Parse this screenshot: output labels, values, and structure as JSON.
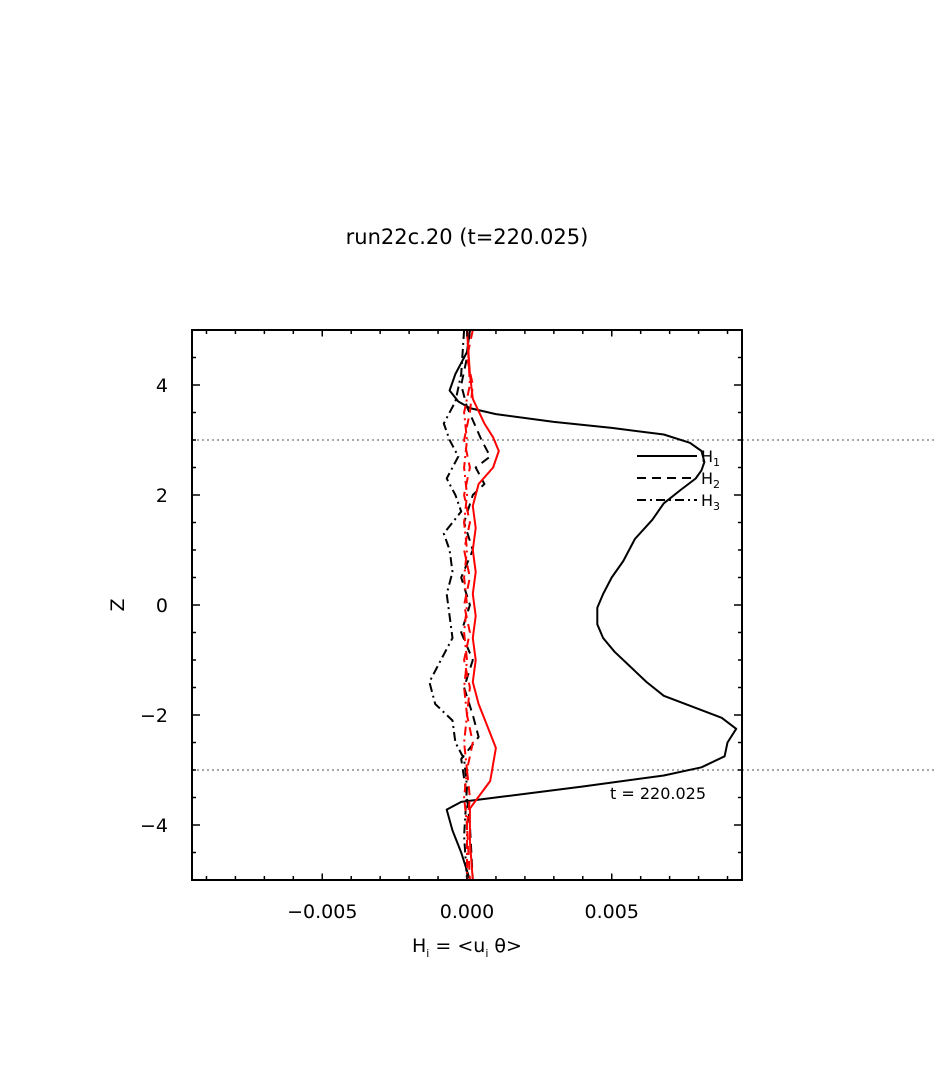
{
  "chart_data": {
    "type": "line",
    "title": "run22c.20 (t=220.025)",
    "xlabel": {
      "main": "H",
      "main_sub": "i",
      "mid": " = <u",
      "mid_sub": "i",
      "end": " θ>"
    },
    "ylabel": "Z",
    "xlim": [
      -0.0095,
      0.0095
    ],
    "ylim": [
      -5,
      5
    ],
    "x_ticks": [
      -0.005,
      0.0,
      0.005
    ],
    "x_tick_labels": [
      "−0.005",
      "0.000",
      "0.005"
    ],
    "y_ticks": [
      -4,
      -2,
      0,
      2,
      4
    ],
    "y_tick_labels": [
      "−4",
      "−2",
      "0",
      "2",
      "4"
    ],
    "reference_lines_z": [
      3,
      -3
    ],
    "annotation": "t = 220.025",
    "legend": [
      {
        "label": "H",
        "sub": "1",
        "style": "solid"
      },
      {
        "label": "H",
        "sub": "2",
        "style": "dashed"
      },
      {
        "label": "H",
        "sub": "3",
        "style": "dashdot"
      }
    ],
    "legend_position": "upper-right",
    "grid": false,
    "series": [
      {
        "name": "H1",
        "color": "#000000",
        "style": "solid",
        "points": [
          [
            0.0001,
            5.0
          ],
          [
            0.0,
            4.6
          ],
          [
            -0.0004,
            4.2
          ],
          [
            -0.0006,
            3.9
          ],
          [
            -0.0003,
            3.7
          ],
          [
            0.0001,
            3.58
          ],
          [
            0.001,
            3.47
          ],
          [
            0.003,
            3.33
          ],
          [
            0.005,
            3.22
          ],
          [
            0.0068,
            3.1
          ],
          [
            0.0077,
            2.95
          ],
          [
            0.0081,
            2.8
          ],
          [
            0.0082,
            2.6
          ],
          [
            0.0081,
            2.45
          ],
          [
            0.0079,
            2.3
          ],
          [
            0.0074,
            2.1
          ],
          [
            0.0068,
            1.85
          ],
          [
            0.0064,
            1.55
          ],
          [
            0.0058,
            1.2
          ],
          [
            0.0054,
            0.8
          ],
          [
            0.005,
            0.5
          ],
          [
            0.0047,
            0.2
          ],
          [
            0.0045,
            -0.05
          ],
          [
            0.0045,
            -0.35
          ],
          [
            0.0047,
            -0.6
          ],
          [
            0.0051,
            -0.85
          ],
          [
            0.0056,
            -1.1
          ],
          [
            0.0062,
            -1.4
          ],
          [
            0.0068,
            -1.65
          ],
          [
            0.0078,
            -1.85
          ],
          [
            0.0088,
            -2.05
          ],
          [
            0.0093,
            -2.25
          ],
          [
            0.009,
            -2.5
          ],
          [
            0.0089,
            -2.75
          ],
          [
            0.0081,
            -2.95
          ],
          [
            0.0068,
            -3.1
          ],
          [
            0.004,
            -3.3
          ],
          [
            0.0013,
            -3.48
          ],
          [
            -0.0002,
            -3.58
          ],
          [
            -0.0007,
            -3.72
          ],
          [
            -0.0005,
            -4.1
          ],
          [
            -0.0002,
            -4.5
          ],
          [
            0.0001,
            -5.0
          ]
        ]
      },
      {
        "name": "H2",
        "color": "#000000",
        "style": "dashed",
        "points": [
          [
            0.0001,
            5.0
          ],
          [
            0.0,
            4.5
          ],
          [
            -0.0002,
            4.0
          ],
          [
            0.0,
            3.6
          ],
          [
            0.0005,
            3.0
          ],
          [
            0.0008,
            2.7
          ],
          [
            0.0003,
            2.5
          ],
          [
            0.0006,
            2.2
          ],
          [
            0.0002,
            2.0
          ],
          [
            -0.0001,
            1.5
          ],
          [
            0.0002,
            1.0
          ],
          [
            -0.0002,
            0.5
          ],
          [
            0.0001,
            0.0
          ],
          [
            -0.0002,
            -0.5
          ],
          [
            0.0002,
            -1.0
          ],
          [
            -0.0001,
            -1.5
          ],
          [
            0.0002,
            -2.0
          ],
          [
            0.0004,
            -2.4
          ],
          [
            -0.0002,
            -2.8
          ],
          [
            0.0,
            -3.5
          ],
          [
            0.0001,
            -4.0
          ],
          [
            0.0002,
            -5.0
          ]
        ]
      },
      {
        "name": "H3",
        "color": "#000000",
        "style": "dashdot",
        "points": [
          [
            -0.0001,
            5.0
          ],
          [
            -0.0002,
            4.2
          ],
          [
            -0.0004,
            3.7
          ],
          [
            -0.0008,
            3.3
          ],
          [
            -0.0006,
            3.0
          ],
          [
            -0.0003,
            2.7
          ],
          [
            -0.0007,
            2.3
          ],
          [
            -0.0004,
            2.0
          ],
          [
            -0.0002,
            1.7
          ],
          [
            -0.0008,
            1.3
          ],
          [
            -0.0006,
            1.0
          ],
          [
            -0.0005,
            0.6
          ],
          [
            -0.0007,
            0.2
          ],
          [
            -0.0006,
            -0.2
          ],
          [
            -0.0005,
            -0.6
          ],
          [
            -0.0009,
            -1.0
          ],
          [
            -0.0013,
            -1.4
          ],
          [
            -0.0011,
            -1.8
          ],
          [
            -0.0005,
            -2.1
          ],
          [
            -0.0004,
            -2.5
          ],
          [
            -0.0001,
            -2.8
          ],
          [
            0.0,
            -3.3
          ],
          [
            -0.0001,
            -4.2
          ],
          [
            0.0,
            -5.0
          ]
        ]
      },
      {
        "name": "",
        "color": "#ff0000",
        "style": "solid",
        "points": [
          [
            0.0,
            5.0
          ],
          [
            0.0001,
            4.2
          ],
          [
            0.0002,
            3.75
          ],
          [
            0.0006,
            3.3
          ],
          [
            0.0009,
            3.05
          ],
          [
            0.0011,
            2.8
          ],
          [
            0.0009,
            2.5
          ],
          [
            0.0004,
            2.2
          ],
          [
            0.0002,
            1.8
          ],
          [
            0.0003,
            1.4
          ],
          [
            0.0002,
            1.0
          ],
          [
            0.0003,
            0.6
          ],
          [
            0.0002,
            0.2
          ],
          [
            0.0003,
            -0.2
          ],
          [
            0.0002,
            -0.6
          ],
          [
            0.0003,
            -1.0
          ],
          [
            0.0002,
            -1.4
          ],
          [
            0.0004,
            -1.8
          ],
          [
            0.0007,
            -2.2
          ],
          [
            0.001,
            -2.6
          ],
          [
            0.0008,
            -3.2
          ],
          [
            0.0001,
            -3.7
          ],
          [
            0.0001,
            -4.3
          ],
          [
            0.0002,
            -5.0
          ]
        ]
      },
      {
        "name": "",
        "color": "#ff0000",
        "style": "dashed",
        "points": [
          [
            0.0002,
            5.0
          ],
          [
            0.0,
            4.5
          ],
          [
            0.0002,
            4.0
          ],
          [
            0.0001,
            3.5
          ],
          [
            -0.0001,
            3.0
          ],
          [
            0.0001,
            2.5
          ],
          [
            -0.0001,
            2.0
          ],
          [
            0.0001,
            1.5
          ],
          [
            -0.0001,
            1.0
          ],
          [
            0.0001,
            0.5
          ],
          [
            -0.0001,
            0.0
          ],
          [
            0.0001,
            -0.5
          ],
          [
            -0.0001,
            -1.0
          ],
          [
            0.0001,
            -1.5
          ],
          [
            0.0,
            -2.0
          ],
          [
            0.0002,
            -2.5
          ],
          [
            0.0,
            -3.0
          ],
          [
            0.0001,
            -3.5
          ],
          [
            0.0,
            -4.0
          ],
          [
            0.0001,
            -5.0
          ]
        ]
      },
      {
        "name": "",
        "color": "#ff0000",
        "style": "dashdot",
        "points": [
          [
            0.0,
            5.0
          ],
          [
            0.0001,
            4.0
          ],
          [
            -0.0001,
            3.5
          ],
          [
            0.0,
            3.0
          ],
          [
            -0.0001,
            2.5
          ],
          [
            0.0,
            2.0
          ],
          [
            -0.0001,
            1.5
          ],
          [
            0.0,
            1.0
          ],
          [
            -0.0001,
            0.5
          ],
          [
            0.0,
            0.0
          ],
          [
            -0.0001,
            -0.5
          ],
          [
            0.0,
            -1.0
          ],
          [
            -0.0001,
            -1.5
          ],
          [
            0.0,
            -2.0
          ],
          [
            -0.0001,
            -2.5
          ],
          [
            0.0,
            -3.0
          ],
          [
            -0.0001,
            -3.5
          ],
          [
            0.0,
            -4.0
          ],
          [
            0.0,
            -5.0
          ]
        ]
      }
    ]
  }
}
